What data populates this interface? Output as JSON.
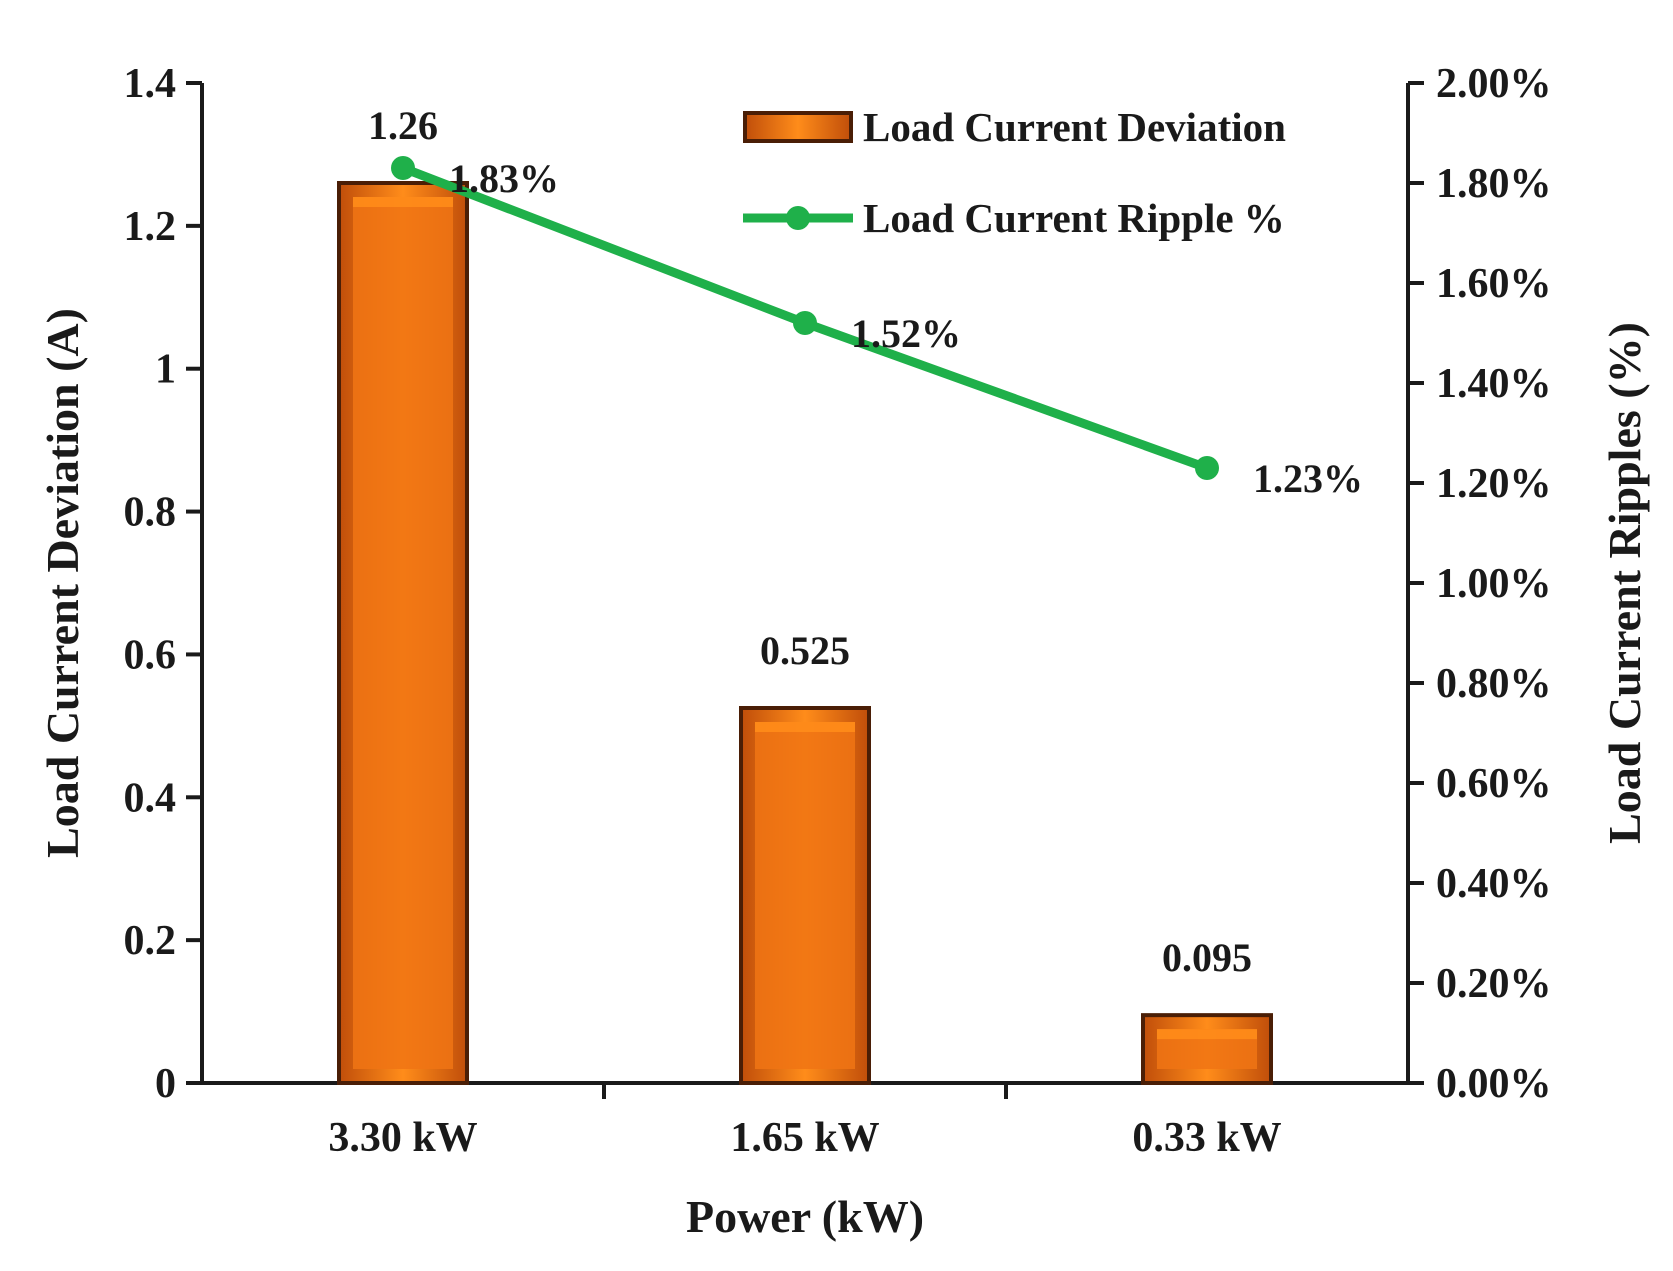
{
  "chart_data": {
    "type": "bar",
    "title": "",
    "categories": [
      "3.30 kW",
      "1.65 kW",
      "0.33 kW"
    ],
    "xlabel": "Power (kW)",
    "ylabel": "Load Current Deviation (A)",
    "y2label": "Load Current Ripples (%)",
    "ylim": [
      0,
      1.4
    ],
    "y_ticks": [
      0,
      0.2,
      0.4,
      0.6,
      0.8,
      1,
      1.2,
      1.4
    ],
    "y_tick_labels": [
      "0",
      "0.2",
      "0.4",
      "0.6",
      "0.8",
      "1",
      "1.2",
      "1.4"
    ],
    "y2lim": [
      0,
      2.0
    ],
    "y2_ticks": [
      0,
      0.2,
      0.4,
      0.6,
      0.8,
      1.0,
      1.2,
      1.4,
      1.6,
      1.8,
      2.0
    ],
    "y2_tick_labels": [
      "0.00%",
      "0.20%",
      "0.40%",
      "0.60%",
      "0.80%",
      "1.00%",
      "1.20%",
      "1.40%",
      "1.60%",
      "1.80%",
      "2.00%"
    ],
    "grid": false,
    "legend_position": "top-right",
    "series": [
      {
        "name": "Load Current Deviation",
        "kind": "bar",
        "axis": "left",
        "values": [
          1.26,
          0.525,
          0.095
        ],
        "labels": [
          "1.26",
          "0.525",
          "0.095"
        ]
      },
      {
        "name": "Load Current Ripple %",
        "kind": "line",
        "axis": "right",
        "values": [
          1.83,
          1.52,
          1.23
        ],
        "labels": [
          "1.83%",
          "1.52%",
          "1.23%"
        ]
      }
    ]
  },
  "colors": {
    "bar_fill": "#f07414",
    "bar_light": "#ff8c1a",
    "bar_dark": "#c04e0a",
    "bar_edge": "#4a1e06",
    "line": "#1fb04a",
    "axis": "#1a1a1a",
    "text": "#1a1a1a"
  }
}
